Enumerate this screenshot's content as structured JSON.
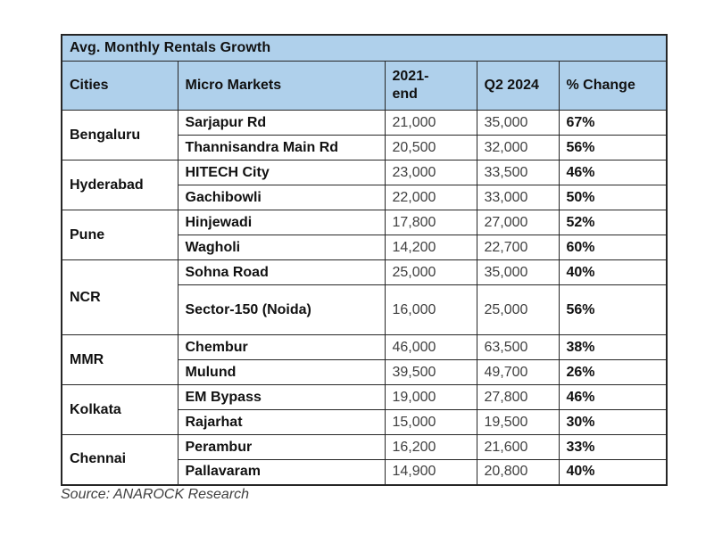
{
  "colors": {
    "header_bg": "#AFD0EB",
    "border": "#262626",
    "text": "#111111",
    "number_text": "#3F3F3F"
  },
  "table": {
    "title": "Avg. Monthly Rentals Growth",
    "columns": {
      "cities": "Cities",
      "micro_markets": "Micro Markets",
      "end_2021": "2021-\nend",
      "q2_2024": "Q2 2024",
      "pct_change": "% Change"
    },
    "groups": [
      {
        "city": "Bengaluru",
        "rows": [
          {
            "market": "Sarjapur Rd",
            "end_2021": "21,000",
            "q2_2024": "35,000",
            "pct_change": "67%"
          },
          {
            "market": "Thannisandra Main Rd",
            "end_2021": "20,500",
            "q2_2024": "32,000",
            "pct_change": "56%"
          }
        ]
      },
      {
        "city": "Hyderabad",
        "rows": [
          {
            "market": "HITECH City",
            "end_2021": "23,000",
            "q2_2024": "33,500",
            "pct_change": "46%"
          },
          {
            "market": "Gachibowli",
            "end_2021": "22,000",
            "q2_2024": "33,000",
            "pct_change": "50%"
          }
        ]
      },
      {
        "city": "Pune",
        "rows": [
          {
            "market": "Hinjewadi",
            "end_2021": "17,800",
            "q2_2024": "27,000",
            "pct_change": "52%"
          },
          {
            "market": "Wagholi",
            "end_2021": "14,200",
            "q2_2024": "22,700",
            "pct_change": "60%"
          }
        ]
      },
      {
        "city": "NCR",
        "rows": [
          {
            "market": "Sohna Road",
            "end_2021": "25,000",
            "q2_2024": "35,000",
            "pct_change": "40%"
          },
          {
            "market": "Sector-150 (Noida)",
            "end_2021": "16,000",
            "q2_2024": "25,000",
            "pct_change": "56%"
          }
        ]
      },
      {
        "city": "MMR",
        "rows": [
          {
            "market": "Chembur",
            "end_2021": "46,000",
            "q2_2024": "63,500",
            "pct_change": "38%"
          },
          {
            "market": "Mulund",
            "end_2021": "39,500",
            "q2_2024": "49,700",
            "pct_change": "26%"
          }
        ]
      },
      {
        "city": "Kolkata",
        "rows": [
          {
            "market": "EM Bypass",
            "end_2021": "19,000",
            "q2_2024": "27,800",
            "pct_change": "46%"
          },
          {
            "market": "Rajarhat",
            "end_2021": "15,000",
            "q2_2024": "19,500",
            "pct_change": "30%"
          }
        ]
      },
      {
        "city": "Chennai",
        "rows": [
          {
            "market": "Perambur",
            "end_2021": "16,200",
            "q2_2024": "21,600",
            "pct_change": "33%"
          },
          {
            "market": "Pallavaram",
            "end_2021": "14,900",
            "q2_2024": "20,800",
            "pct_change": "40%"
          }
        ]
      }
    ]
  },
  "source": "Source: ANAROCK Research",
  "chart_data": {
    "type": "table",
    "title": "Avg. Monthly Rentals Growth",
    "columns": [
      "Cities",
      "Micro Markets",
      "2021-end",
      "Q2 2024",
      "% Change"
    ],
    "rows": [
      [
        "Bengaluru",
        "Sarjapur Rd",
        21000,
        35000,
        "67%"
      ],
      [
        "Bengaluru",
        "Thannisandra Main Rd",
        20500,
        32000,
        "56%"
      ],
      [
        "Hyderabad",
        "HITECH City",
        23000,
        33500,
        "46%"
      ],
      [
        "Hyderabad",
        "Gachibowli",
        22000,
        33000,
        "50%"
      ],
      [
        "Pune",
        "Hinjewadi",
        17800,
        27000,
        "52%"
      ],
      [
        "Pune",
        "Wagholi",
        14200,
        22700,
        "60%"
      ],
      [
        "NCR",
        "Sohna Road",
        25000,
        35000,
        "40%"
      ],
      [
        "NCR",
        "Sector-150 (Noida)",
        16000,
        25000,
        "56%"
      ],
      [
        "MMR",
        "Chembur",
        46000,
        63500,
        "38%"
      ],
      [
        "MMR",
        "Mulund",
        39500,
        49700,
        "26%"
      ],
      [
        "Kolkata",
        "EM Bypass",
        19000,
        27800,
        "46%"
      ],
      [
        "Kolkata",
        "Rajarhat",
        15000,
        19500,
        "30%"
      ],
      [
        "Chennai",
        "Perambur",
        16200,
        21600,
        "33%"
      ],
      [
        "Chennai",
        "Pallavaram",
        14900,
        20800,
        "40%"
      ]
    ],
    "annotations": [
      "Source: ANAROCK Research"
    ]
  }
}
